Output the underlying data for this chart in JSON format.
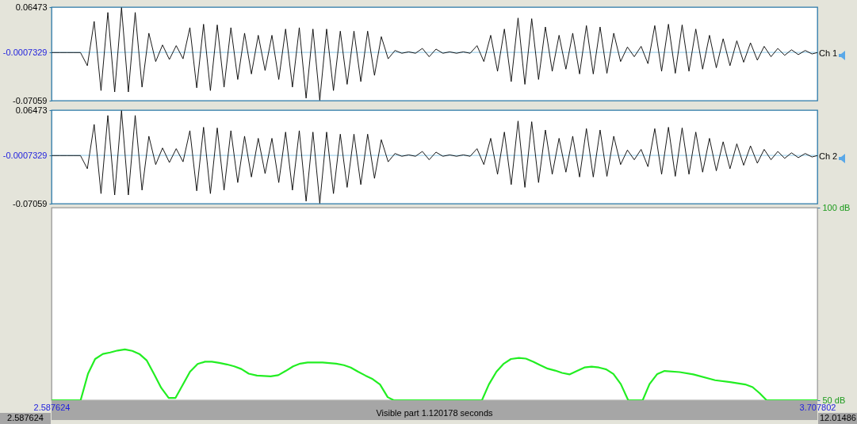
{
  "chart_data": [
    {
      "type": "line",
      "xlim": [
        2.587624,
        3.707802
      ],
      "ylim": [
        -0.07059,
        0.06473
      ],
      "yticks": [
        -0.07059,
        -0.0007329,
        0.06473
      ],
      "tick_labels": "y",
      "ref_lines": [
        {
          "axis": "y",
          "value": -0.0007329,
          "color": "#8cc8e8"
        }
      ],
      "x": [
        2.5877,
        2.59,
        2.6,
        2.61,
        2.62,
        2.63,
        2.64,
        2.65,
        2.66,
        2.67,
        2.68,
        2.69,
        2.7,
        2.71,
        2.72,
        2.73,
        2.74,
        2.75,
        2.76,
        2.77,
        2.78,
        2.79,
        2.8,
        2.81,
        2.82,
        2.83,
        2.84,
        2.85,
        2.86,
        2.87,
        2.88,
        2.89,
        2.9,
        2.91,
        2.92,
        2.93,
        2.94,
        2.95,
        2.96,
        2.97,
        2.98,
        2.99,
        3.0,
        3.01,
        3.02,
        3.03,
        3.04,
        3.05,
        3.06,
        3.07,
        3.08,
        3.09,
        3.1,
        3.11,
        3.12,
        3.13,
        3.14,
        3.15,
        3.16,
        3.17,
        3.18,
        3.19,
        3.2,
        3.21,
        3.22,
        3.23,
        3.24,
        3.25,
        3.26,
        3.27,
        3.28,
        3.29,
        3.3,
        3.31,
        3.32,
        3.33,
        3.34,
        3.35,
        3.36,
        3.37,
        3.38,
        3.39,
        3.4,
        3.41,
        3.42,
        3.43,
        3.44,
        3.45,
        3.46,
        3.47,
        3.48,
        3.49,
        3.5,
        3.51,
        3.52,
        3.53,
        3.54,
        3.55,
        3.56,
        3.57,
        3.58,
        3.59,
        3.6,
        3.61,
        3.62,
        3.63,
        3.64,
        3.65,
        3.66,
        3.67,
        3.68,
        3.69,
        3.7,
        3.7078
      ],
      "series": [
        {
          "name": "Ch 1",
          "color": "#000000",
          "values": [
            -0.001,
            -0.001,
            -0.001,
            -0.001,
            -0.001,
            -0.001,
            -0.02,
            0.044,
            -0.056,
            0.057,
            -0.058,
            0.064,
            -0.058,
            0.057,
            -0.051,
            0.027,
            -0.014,
            0.01,
            -0.011,
            0.009,
            -0.01,
            0.035,
            -0.052,
            0.04,
            -0.056,
            0.039,
            -0.051,
            0.035,
            -0.04,
            0.027,
            -0.032,
            0.024,
            -0.027,
            0.024,
            -0.04,
            0.033,
            -0.051,
            0.035,
            -0.067,
            0.033,
            -0.07,
            0.033,
            -0.056,
            0.03,
            -0.047,
            0.03,
            -0.043,
            0.03,
            -0.034,
            0.022,
            -0.01,
            0.002,
            -0.002,
            0.0,
            -0.002,
            0.005,
            -0.007,
            0.004,
            -0.002,
            0.0,
            -0.002,
            0.0,
            -0.002,
            0.009,
            -0.014,
            0.024,
            -0.028,
            0.033,
            -0.043,
            0.049,
            -0.047,
            0.048,
            -0.04,
            0.036,
            -0.028,
            0.024,
            -0.025,
            0.027,
            -0.032,
            0.038,
            -0.032,
            0.036,
            -0.031,
            0.027,
            -0.014,
            0.007,
            -0.007,
            0.008,
            -0.017,
            0.038,
            -0.028,
            0.04,
            -0.031,
            0.039,
            -0.028,
            0.033,
            -0.025,
            0.024,
            -0.023,
            0.019,
            -0.02,
            0.016,
            -0.015,
            0.013,
            -0.012,
            0.008,
            -0.007,
            0.005,
            -0.005,
            0.003,
            -0.004,
            0.002,
            -0.003,
            -0.001
          ]
        }
      ]
    },
    {
      "type": "line",
      "xlim": [
        2.587624,
        3.707802
      ],
      "ylim": [
        -0.07059,
        0.06473
      ],
      "yticks": [
        -0.07059,
        -0.0007329,
        0.06473
      ],
      "tick_labels": "y",
      "ref_lines": [
        {
          "axis": "y",
          "value": -0.0007329,
          "color": "#8cc8e8"
        }
      ],
      "x": [
        2.5877,
        2.59,
        2.6,
        2.61,
        2.62,
        2.63,
        2.64,
        2.65,
        2.66,
        2.67,
        2.68,
        2.69,
        2.7,
        2.71,
        2.72,
        2.73,
        2.74,
        2.75,
        2.76,
        2.77,
        2.78,
        2.79,
        2.8,
        2.81,
        2.82,
        2.83,
        2.84,
        2.85,
        2.86,
        2.87,
        2.88,
        2.89,
        2.9,
        2.91,
        2.92,
        2.93,
        2.94,
        2.95,
        2.96,
        2.97,
        2.98,
        2.99,
        3.0,
        3.01,
        3.02,
        3.03,
        3.04,
        3.05,
        3.06,
        3.07,
        3.08,
        3.09,
        3.1,
        3.11,
        3.12,
        3.13,
        3.14,
        3.15,
        3.16,
        3.17,
        3.18,
        3.19,
        3.2,
        3.21,
        3.22,
        3.23,
        3.24,
        3.25,
        3.26,
        3.27,
        3.28,
        3.29,
        3.3,
        3.31,
        3.32,
        3.33,
        3.34,
        3.35,
        3.36,
        3.37,
        3.38,
        3.39,
        3.4,
        3.41,
        3.42,
        3.43,
        3.44,
        3.45,
        3.46,
        3.47,
        3.48,
        3.49,
        3.5,
        3.51,
        3.52,
        3.53,
        3.54,
        3.55,
        3.56,
        3.57,
        3.58,
        3.59,
        3.6,
        3.61,
        3.62,
        3.63,
        3.64,
        3.65,
        3.66,
        3.67,
        3.68,
        3.69,
        3.7,
        3.7078
      ],
      "series": [
        {
          "name": "Ch 2",
          "color": "#000000",
          "values": [
            -0.001,
            -0.001,
            -0.001,
            -0.001,
            -0.001,
            -0.001,
            -0.02,
            0.044,
            -0.056,
            0.057,
            -0.058,
            0.064,
            -0.058,
            0.057,
            -0.051,
            0.027,
            -0.014,
            0.01,
            -0.011,
            0.009,
            -0.01,
            0.035,
            -0.052,
            0.04,
            -0.056,
            0.039,
            -0.051,
            0.035,
            -0.04,
            0.027,
            -0.032,
            0.024,
            -0.027,
            0.024,
            -0.04,
            0.033,
            -0.051,
            0.035,
            -0.067,
            0.033,
            -0.07,
            0.033,
            -0.056,
            0.03,
            -0.047,
            0.03,
            -0.043,
            0.03,
            -0.034,
            0.022,
            -0.01,
            0.002,
            -0.002,
            0.0,
            -0.002,
            0.005,
            -0.007,
            0.004,
            -0.002,
            0.0,
            -0.002,
            0.0,
            -0.002,
            0.009,
            -0.014,
            0.024,
            -0.028,
            0.033,
            -0.043,
            0.049,
            -0.047,
            0.048,
            -0.04,
            0.036,
            -0.028,
            0.024,
            -0.025,
            0.027,
            -0.032,
            0.038,
            -0.032,
            0.036,
            -0.031,
            0.027,
            -0.014,
            0.007,
            -0.007,
            0.008,
            -0.017,
            0.038,
            -0.028,
            0.04,
            -0.031,
            0.039,
            -0.028,
            0.033,
            -0.025,
            0.024,
            -0.023,
            0.019,
            -0.02,
            0.016,
            -0.015,
            0.013,
            -0.012,
            0.008,
            -0.007,
            0.005,
            -0.005,
            0.003,
            -0.004,
            0.002,
            -0.003,
            -0.001
          ]
        }
      ]
    },
    {
      "type": "line",
      "xlim": [
        2.587624,
        3.707802
      ],
      "xticks": [
        2.587624,
        3.707802
      ],
      "y2lim": [
        50,
        100
      ],
      "y2ticks": [
        {
          "value": 50,
          "label": "50 dB"
        },
        {
          "value": 100,
          "label": "100 dB"
        }
      ],
      "annotations": [
        "Visible part 1.120178 seconds",
        "2.587624",
        "12.01486"
      ],
      "x": [
        2.5877,
        2.6302,
        2.641,
        2.6514,
        2.6627,
        2.6734,
        2.6842,
        2.695,
        2.7058,
        2.7162,
        2.727,
        2.7373,
        2.7481,
        2.759,
        2.769,
        2.7902,
        2.8013,
        2.8121,
        2.8221,
        2.833,
        2.8441,
        2.8549,
        2.8653,
        2.8761,
        2.8881,
        2.9081,
        2.9193,
        2.9301,
        2.941,
        2.9513,
        2.9621,
        2.9841,
        3.004,
        3.0153,
        3.0253,
        3.036,
        3.0468,
        3.0573,
        3.0681,
        3.0793,
        3.0881,
        3.2172,
        3.2273,
        3.2384,
        3.2492,
        3.2596,
        3.2712,
        3.2815,
        3.2924,
        3.3024,
        3.3135,
        3.3243,
        3.3344,
        3.3452,
        3.3563,
        3.3671,
        3.3775,
        3.3883,
        3.3991,
        3.4095,
        3.4203,
        3.4311,
        3.4523,
        3.4623,
        3.4736,
        3.4843,
        3.5063,
        3.5263,
        3.5582,
        3.5802,
        3.6023,
        3.6131,
        3.6235,
        3.6335,
        3.7078
      ],
      "series": [
        {
          "color": "#22ee22",
          "axis": "y2",
          "values": [
            50,
            50,
            56.9,
            60.7,
            62.0,
            62.4,
            62.9,
            63.2,
            62.8,
            62.0,
            60.3,
            56.9,
            53.2,
            50.6,
            50.6,
            57.4,
            59.4,
            60.0,
            60.0,
            59.7,
            59.3,
            58.8,
            58.1,
            56.9,
            56.4,
            56.2,
            56.5,
            57.6,
            58.8,
            59.5,
            59.8,
            59.8,
            59.5,
            59.1,
            58.5,
            57.4,
            56.4,
            55.5,
            54.1,
            50.8,
            50,
            50,
            54.1,
            57.4,
            59.5,
            60.7,
            61.0,
            60.8,
            60.0,
            59.1,
            58.2,
            57.7,
            57.1,
            56.7,
            57.6,
            58.5,
            58.7,
            58.5,
            58.0,
            56.8,
            54.2,
            50,
            50,
            54.2,
            56.8,
            57.6,
            57.3,
            56.7,
            55.2,
            54.7,
            54.1,
            53.4,
            51.8,
            50,
            50
          ]
        }
      ]
    }
  ]
}
